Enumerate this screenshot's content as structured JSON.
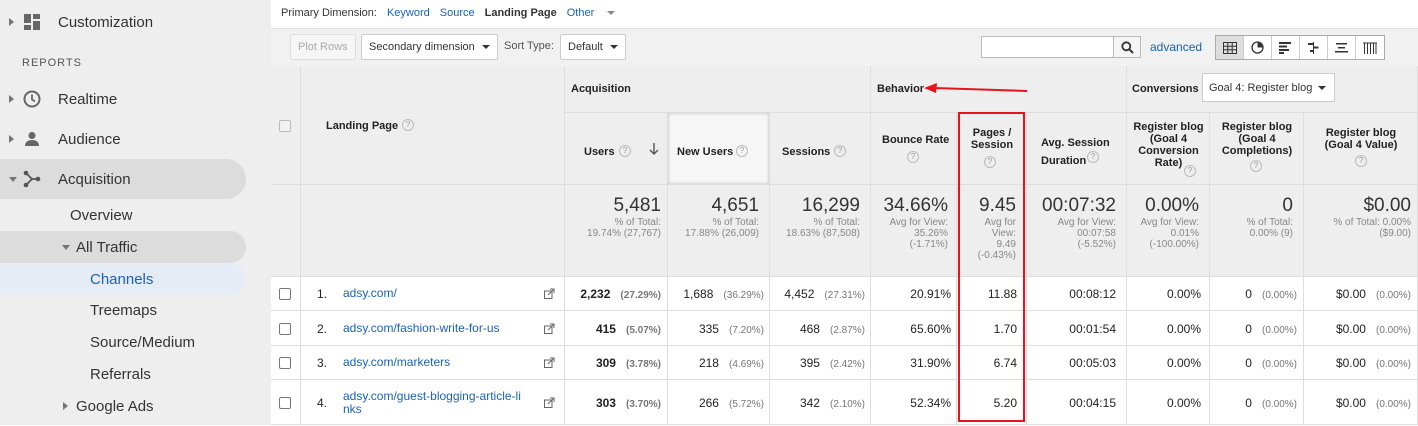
{
  "sidebar": {
    "customization": "Customization",
    "reports_heading": "REPORTS",
    "realtime": "Realtime",
    "audience": "Audience",
    "acquisition": "Acquisition",
    "overview": "Overview",
    "all_traffic": "All Traffic",
    "channels": "Channels",
    "treemaps": "Treemaps",
    "source_medium": "Source/Medium",
    "referrals": "Referrals",
    "google_ads": "Google Ads"
  },
  "dimension_bar": {
    "label": "Primary Dimension:",
    "keyword": "Keyword",
    "source": "Source",
    "landing_page": "Landing Page",
    "other": "Other"
  },
  "toolbar": {
    "plot_rows": "Plot Rows",
    "secondary_dimension": "Secondary dimension",
    "sort_type_label": "Sort Type:",
    "sort_type_value": "Default",
    "search_placeholder": "",
    "advanced": "advanced"
  },
  "table": {
    "landing_page_header": "Landing Page",
    "acquisition_group": "Acquisition",
    "behavior_group": "Behavior",
    "conversions_group": "Conversions",
    "goal_select": "Goal 4: Register blog",
    "columns": {
      "users": "Users",
      "new_users": "New Users",
      "sessions": "Sessions",
      "bounce_rate": "Bounce Rate",
      "pages_session_1": "Pages /",
      "pages_session_2": "Session",
      "avg_session_1": "Avg. Session",
      "avg_session_2": "Duration",
      "conv_rate_1": "Register blog",
      "conv_rate_2": "(Goal 4",
      "conv_rate_3": "Conversion",
      "conv_rate_4": "Rate)",
      "completions_1": "Register blog",
      "completions_2": "(Goal 4",
      "completions_3": "Completions)",
      "value_1": "Register blog",
      "value_2": "(Goal 4 Value)"
    },
    "totals": {
      "users": "5,481",
      "users_sub1": "% of Total:",
      "users_sub2": "19.74% (27,767)",
      "new_users": "4,651",
      "new_users_sub1": "% of Total:",
      "new_users_sub2": "17.88% (26,009)",
      "sessions": "16,299",
      "sessions_sub1": "% of Total:",
      "sessions_sub2": "18.63% (87,508)",
      "bounce": "34.66%",
      "bounce_sub1": "Avg for View:",
      "bounce_sub2": "35.26%",
      "bounce_sub3": "(-1.71%)",
      "pages": "9.45",
      "pages_sub1": "Avg for",
      "pages_sub2": "View:",
      "pages_sub3": "9.49",
      "pages_sub4": "(-0.43%)",
      "duration": "00:07:32",
      "duration_sub1": "Avg for View:",
      "duration_sub2": "00:07:58",
      "duration_sub3": "(-5.52%)",
      "conv_rate": "0.00%",
      "conv_rate_sub1": "Avg for View:",
      "conv_rate_sub2": "0.01%",
      "conv_rate_sub3": "(-100.00%)",
      "completions": "0",
      "completions_sub1": "% of Total:",
      "completions_sub2": "0.00% (9)",
      "value": "$0.00",
      "value_sub1": "% of Total: 0.00%",
      "value_sub2": "($9.00)"
    },
    "rows": [
      {
        "num": "1.",
        "page": "adsy.com/",
        "page2": "",
        "users": "2,232",
        "users_pct": "(27.29%)",
        "new_users": "1,688",
        "new_users_pct": "(36.29%)",
        "sessions": "4,452",
        "sessions_pct": "(27.31%)",
        "bounce": "20.91%",
        "pages": "11.88",
        "duration": "00:08:12",
        "conv_rate": "0.00%",
        "completions": "0",
        "completions_pct": "(0.00%)",
        "value": "$0.00",
        "value_pct": "(0.00%)"
      },
      {
        "num": "2.",
        "page": "adsy.com/fashion-write-for-us",
        "page2": "",
        "users": "415",
        "users_pct": "(5.07%)",
        "new_users": "335",
        "new_users_pct": "(7.20%)",
        "sessions": "468",
        "sessions_pct": "(2.87%)",
        "bounce": "65.60%",
        "pages": "1.70",
        "duration": "00:01:54",
        "conv_rate": "0.00%",
        "completions": "0",
        "completions_pct": "(0.00%)",
        "value": "$0.00",
        "value_pct": "(0.00%)"
      },
      {
        "num": "3.",
        "page": "adsy.com/marketers",
        "page2": "",
        "users": "309",
        "users_pct": "(3.78%)",
        "new_users": "218",
        "new_users_pct": "(4.69%)",
        "sessions": "395",
        "sessions_pct": "(2.42%)",
        "bounce": "31.90%",
        "pages": "6.74",
        "duration": "00:05:03",
        "conv_rate": "0.00%",
        "completions": "0",
        "completions_pct": "(0.00%)",
        "value": "$0.00",
        "value_pct": "(0.00%)"
      },
      {
        "num": "4.",
        "page": "adsy.com/guest-blogging-article-li",
        "page2": "nks",
        "users": "303",
        "users_pct": "(3.70%)",
        "new_users": "266",
        "new_users_pct": "(5.72%)",
        "sessions": "342",
        "sessions_pct": "(2.10%)",
        "bounce": "52.34%",
        "pages": "5.20",
        "duration": "00:04:15",
        "conv_rate": "0.00%",
        "completions": "0",
        "completions_pct": "(0.00%)",
        "value": "$0.00",
        "value_pct": "(0.00%)"
      }
    ]
  },
  "help_glyph": "?",
  "colors": {
    "link": "#1a62b8",
    "highlight": "#e8141b",
    "sidebar_active": "#e5ecf6"
  }
}
